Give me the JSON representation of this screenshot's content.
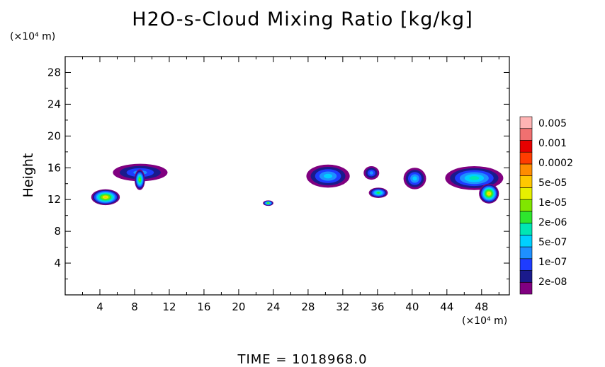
{
  "chart_data": {
    "type": "heatmap",
    "title": "H2O-s-Cloud Mixing Ratio [kg/kg]",
    "ylabel": "Height",
    "y_unit": "(×10⁴ m)",
    "x_unit": "(×10⁴ m)",
    "footer": "TIME = 1018968.0",
    "xlim": [
      0,
      51.2
    ],
    "ylim": [
      0,
      30
    ],
    "x_ticks": [
      "4",
      "8",
      "12",
      "16",
      "20",
      "24",
      "28",
      "32",
      "36",
      "40",
      "44",
      "48"
    ],
    "y_ticks": [
      "4",
      "8",
      "12",
      "16",
      "20",
      "24",
      "28"
    ],
    "colorbar": {
      "labels": [
        "0.005",
        "0.001",
        "0.0002",
        "5e-05",
        "1e-05",
        "2e-06",
        "5e-07",
        "1e-07",
        "2e-08"
      ],
      "colors": [
        "#800080",
        "#1a1a8c",
        "#1e3cff",
        "#1e90ff",
        "#00d0ff",
        "#00e6b4",
        "#2ee62e",
        "#80e600",
        "#e6f000",
        "#ffc800",
        "#ff8c00",
        "#ff3c00",
        "#e60000",
        "#f07070",
        "#ffb4b4"
      ]
    },
    "cloud_regions": [
      {
        "x0": 5.5,
        "x1": 11.8,
        "y0": 14.3,
        "y1": 16.5,
        "top_level": 3
      },
      {
        "x0": 3.0,
        "x1": 6.3,
        "y0": 11.3,
        "y1": 13.3,
        "top_level": 9
      },
      {
        "x0": 8.0,
        "x1": 9.2,
        "y0": 13.2,
        "y1": 15.8,
        "top_level": 7
      },
      {
        "x0": 22.8,
        "x1": 24.0,
        "y0": 11.2,
        "y1": 11.9,
        "top_level": 7
      },
      {
        "x0": 27.8,
        "x1": 32.8,
        "y0": 13.5,
        "y1": 16.4,
        "top_level": 4
      },
      {
        "x0": 34.4,
        "x1": 36.2,
        "y0": 14.5,
        "y1": 16.2,
        "top_level": 3
      },
      {
        "x0": 35.0,
        "x1": 37.2,
        "y0": 12.2,
        "y1": 13.5,
        "top_level": 6
      },
      {
        "x0": 39.0,
        "x1": 41.6,
        "y0": 13.3,
        "y1": 16.0,
        "top_level": 4
      },
      {
        "x0": 43.8,
        "x1": 50.5,
        "y0": 13.2,
        "y1": 16.2,
        "top_level": 5
      },
      {
        "x0": 47.7,
        "x1": 50.0,
        "y0": 11.5,
        "y1": 14.0,
        "top_level": 9
      }
    ]
  }
}
